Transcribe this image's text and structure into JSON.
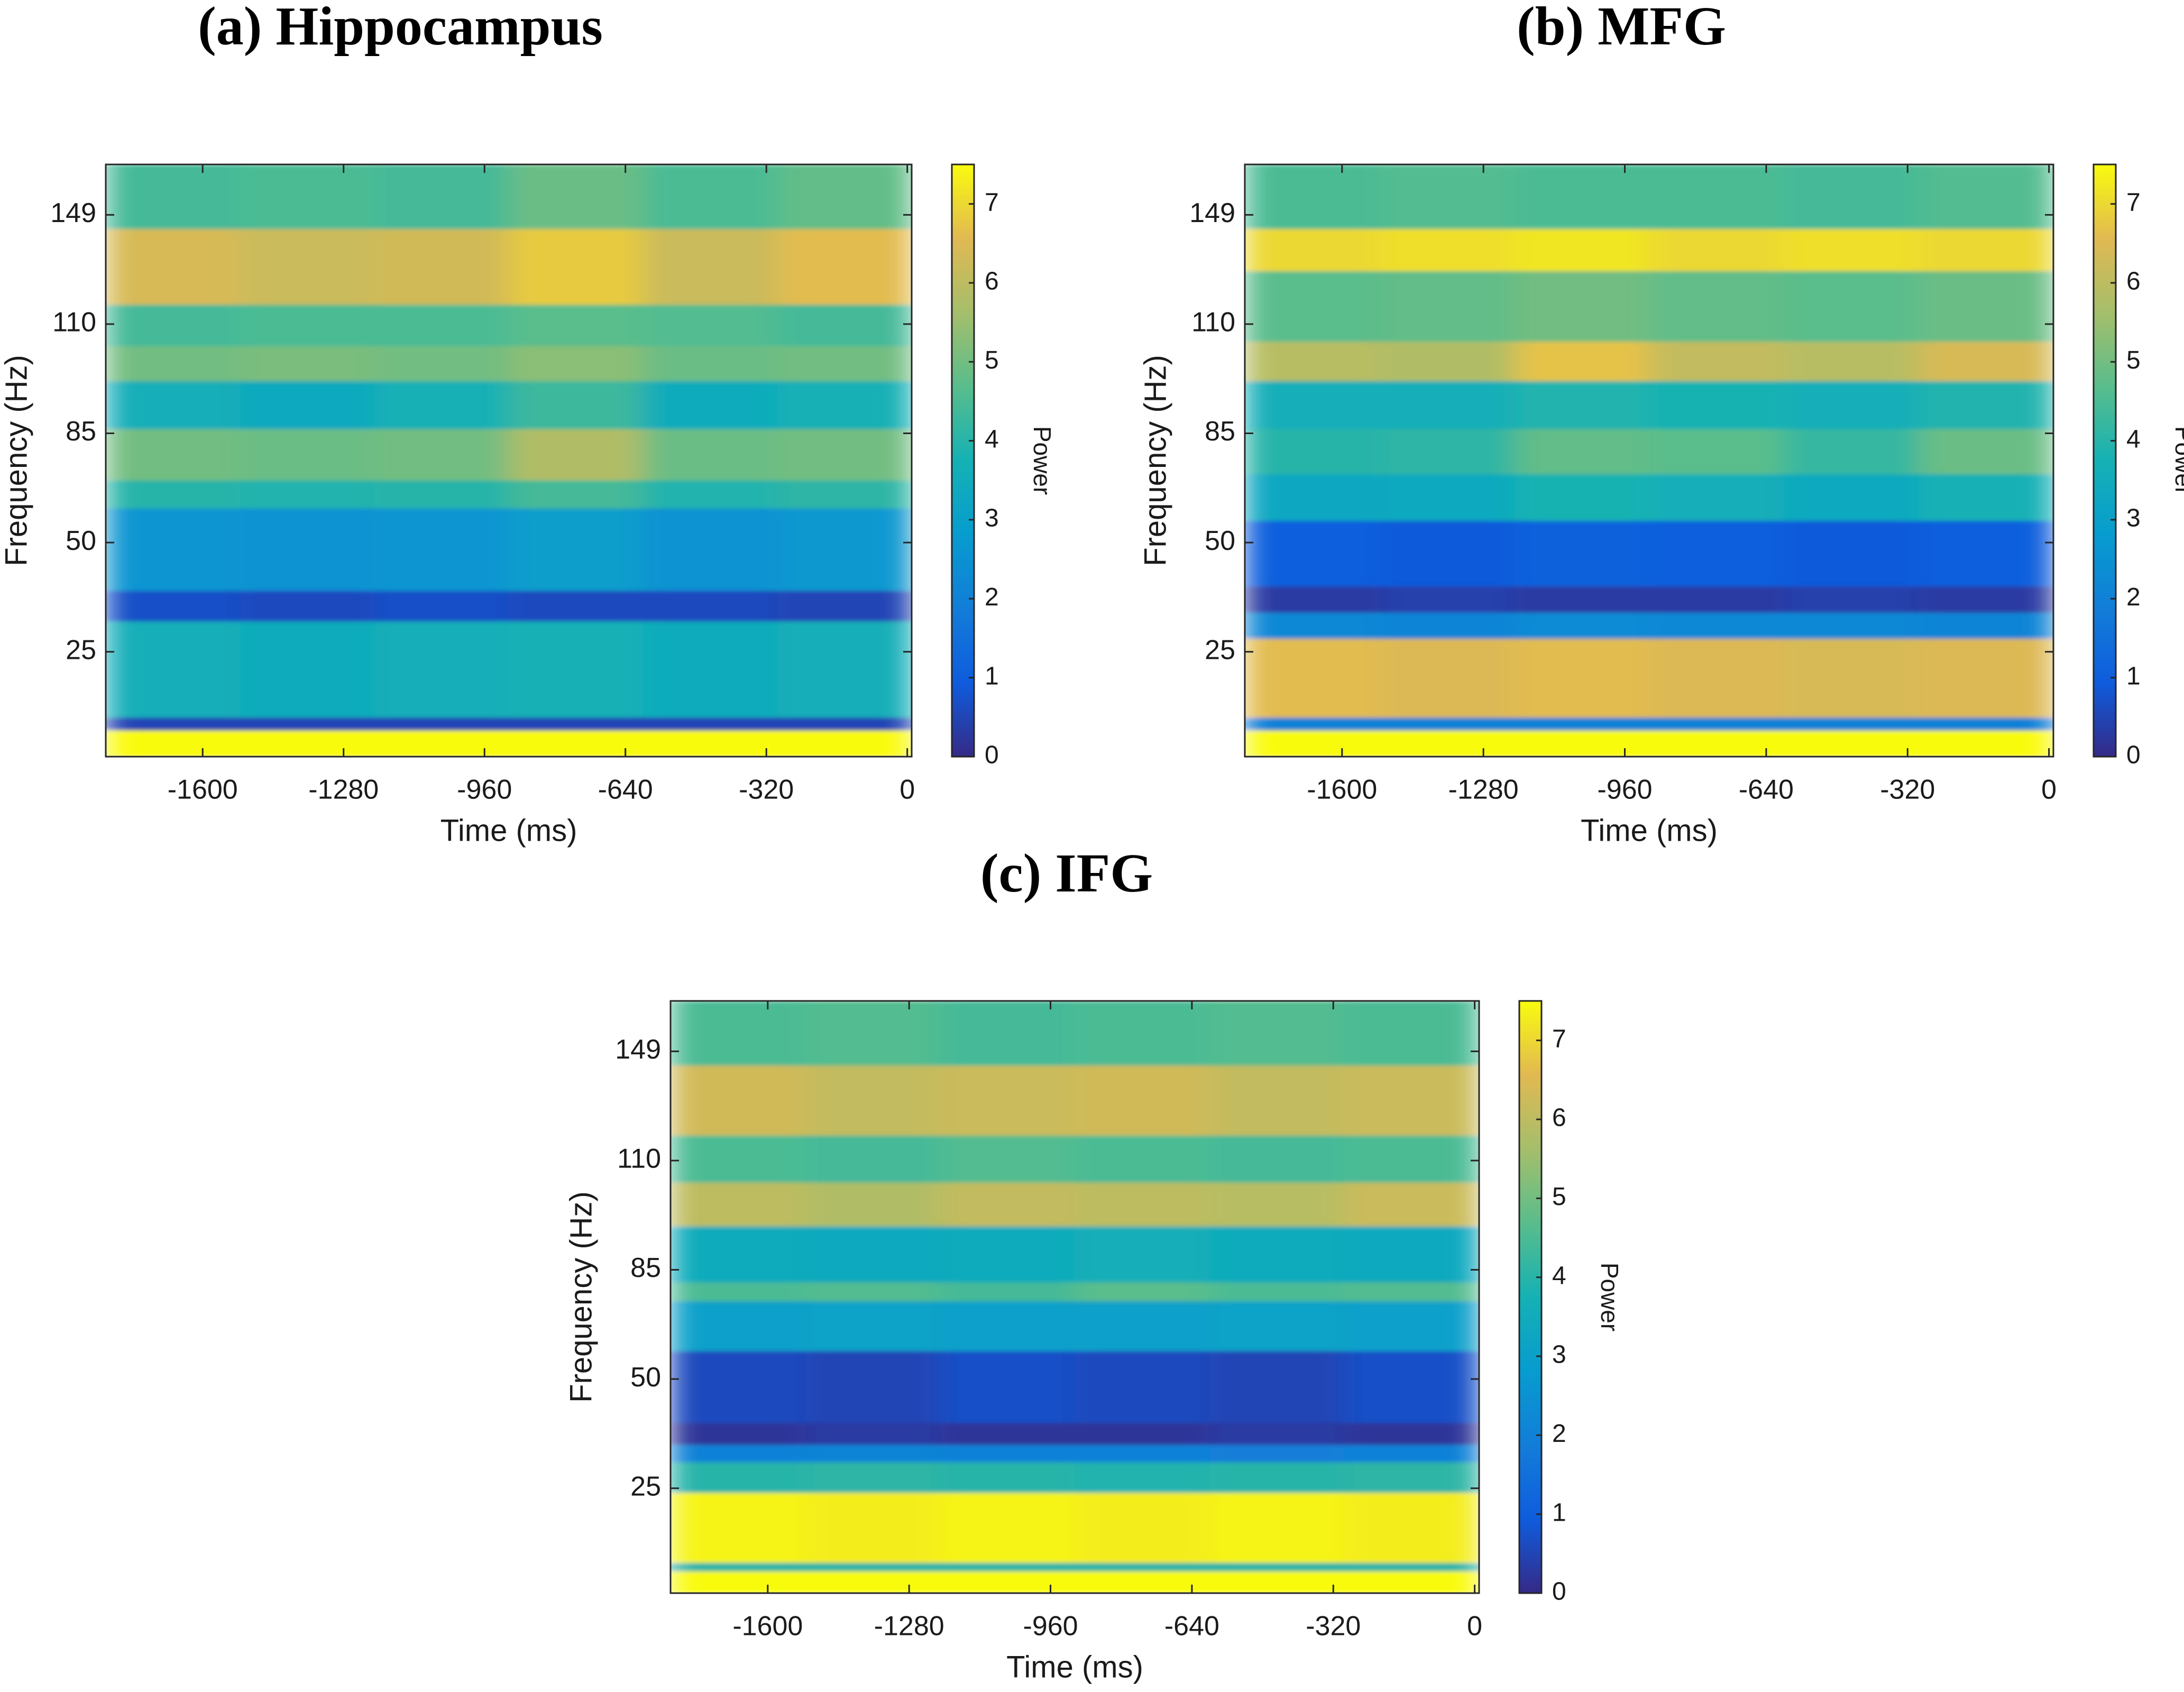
{
  "chart_data": [
    {
      "type": "heatmap",
      "title": "(a) Hippocampus",
      "xlabel": "Time (ms)",
      "ylabel": "Frequency (Hz)",
      "xlim": [
        -1820,
        10
      ],
      "xticks": [
        -1600,
        -1280,
        -960,
        -640,
        -320,
        0
      ],
      "ylim": [
        1,
        167
      ],
      "yticks": [
        25,
        50,
        85,
        110,
        149
      ],
      "xbins": [
        -1820,
        -1515,
        -1210,
        -905,
        -600,
        -295,
        10
      ],
      "ybins": [
        1,
        7,
        10,
        32,
        39,
        61,
        70,
        86,
        97,
        105,
        117,
        144,
        167
      ],
      "values": [
        [
          7.5,
          7.5,
          7.5,
          7.5,
          7.5,
          7.5
        ],
        [
          0.5,
          0.5,
          0.5,
          0.5,
          0.5,
          0.5
        ],
        [
          3.6,
          3.5,
          3.6,
          3.7,
          3.5,
          3.6
        ],
        [
          0.7,
          0.6,
          0.7,
          0.6,
          0.6,
          0.5
        ],
        [
          2.6,
          2.5,
          2.6,
          2.9,
          2.5,
          2.7
        ],
        [
          4.0,
          3.9,
          4.0,
          4.4,
          3.9,
          4.1
        ],
        [
          5.0,
          4.9,
          5.0,
          5.8,
          4.9,
          5.0
        ],
        [
          3.6,
          3.4,
          3.7,
          4.3,
          3.5,
          3.7
        ],
        [
          5.0,
          5.1,
          5.0,
          5.3,
          4.9,
          5.0
        ],
        [
          4.4,
          4.5,
          4.5,
          4.7,
          4.6,
          4.4
        ],
        [
          6.4,
          6.2,
          6.3,
          6.8,
          6.2,
          6.6
        ],
        [
          4.4,
          4.5,
          4.4,
          4.9,
          4.5,
          4.8
        ]
      ],
      "colormap": "parula",
      "clim": [
        0,
        7.5
      ],
      "cticks": [
        0,
        1,
        2,
        3,
        4,
        5,
        6,
        7
      ],
      "colorbar_label": "Power"
    },
    {
      "type": "heatmap",
      "title": "(b) MFG",
      "xlabel": "Time (ms)",
      "ylabel": "Frequency (Hz)",
      "xlim": [
        -1820,
        10
      ],
      "xticks": [
        -1600,
        -1280,
        -960,
        -640,
        -320,
        0
      ],
      "ylim": [
        1,
        167
      ],
      "yticks": [
        25,
        50,
        85,
        110,
        149
      ],
      "xbins": [
        -1820,
        -1515,
        -1210,
        -905,
        -600,
        -295,
        10
      ],
      "ybins": [
        1,
        7,
        10,
        28,
        34,
        40,
        57,
        72,
        86,
        97,
        106,
        129,
        144,
        167
      ],
      "values": [
        [
          7.5,
          7.5,
          7.5,
          7.5,
          7.5,
          7.5
        ],
        [
          2.0,
          2.0,
          2.0,
          2.0,
          2.0,
          2.0
        ],
        [
          6.6,
          6.5,
          6.6,
          6.5,
          6.4,
          6.5
        ],
        [
          2.2,
          2.1,
          2.3,
          2.2,
          2.2,
          2.1
        ],
        [
          0.3,
          0.4,
          0.3,
          0.3,
          0.4,
          0.3
        ],
        [
          1.0,
          0.9,
          1.1,
          1.0,
          0.9,
          1.0
        ],
        [
          3.3,
          3.4,
          3.8,
          3.6,
          3.4,
          3.7
        ],
        [
          4.0,
          4.1,
          4.8,
          4.7,
          4.2,
          4.9
        ],
        [
          3.6,
          3.6,
          3.9,
          3.8,
          3.6,
          3.9
        ],
        [
          5.9,
          5.8,
          6.7,
          6.1,
          5.9,
          6.4
        ],
        [
          4.7,
          4.8,
          5.0,
          4.8,
          4.7,
          4.9
        ],
        [
          7.0,
          7.1,
          7.2,
          7.0,
          7.1,
          7.0
        ],
        [
          4.5,
          4.6,
          4.5,
          4.5,
          4.4,
          4.6
        ]
      ],
      "colormap": "parula",
      "clim": [
        0,
        7.5
      ],
      "cticks": [
        0,
        1,
        2,
        3,
        4,
        5,
        6,
        7
      ],
      "colorbar_label": "Power"
    },
    {
      "type": "heatmap",
      "title": "(c) IFG",
      "xlabel": "Time (ms)",
      "ylabel": "Frequency (Hz)",
      "xlim": [
        -1820,
        10
      ],
      "xticks": [
        -1600,
        -1280,
        -960,
        -640,
        -320,
        0
      ],
      "ylim": [
        1,
        167
      ],
      "yticks": [
        25,
        50,
        85,
        110,
        149
      ],
      "xbins": [
        -1820,
        -1515,
        -1210,
        -905,
        -600,
        -295,
        10
      ],
      "ybins": [
        1,
        6,
        8,
        24,
        31,
        35,
        40,
        59,
        75,
        81,
        95,
        105,
        119,
        144,
        167
      ],
      "values": [
        [
          7.5,
          7.5,
          7.5,
          7.5,
          7.5,
          7.5
        ],
        [
          4.0,
          4.0,
          4.0,
          4.0,
          4.0,
          4.0
        ],
        [
          7.4,
          7.3,
          7.4,
          7.3,
          7.4,
          7.3
        ],
        [
          4.0,
          4.1,
          4.0,
          3.9,
          4.0,
          4.1
        ],
        [
          2.0,
          2.1,
          2.0,
          2.0,
          1.9,
          2.0
        ],
        [
          0.2,
          0.3,
          0.2,
          0.2,
          0.3,
          0.2
        ],
        [
          0.6,
          0.5,
          0.7,
          0.6,
          0.5,
          0.7
        ],
        [
          3.0,
          3.1,
          3.0,
          3.0,
          3.1,
          3.0
        ],
        [
          4.5,
          4.6,
          4.4,
          4.7,
          4.5,
          4.6
        ],
        [
          3.5,
          3.4,
          3.5,
          3.6,
          3.5,
          3.4
        ],
        [
          6.0,
          5.8,
          6.1,
          6.0,
          5.9,
          6.2
        ],
        [
          4.5,
          4.4,
          4.6,
          4.5,
          4.4,
          4.5
        ],
        [
          6.3,
          6.1,
          6.2,
          6.3,
          6.1,
          6.2
        ],
        [
          4.5,
          4.6,
          4.4,
          4.5,
          4.6,
          4.5
        ]
      ],
      "colormap": "parula",
      "clim": [
        0,
        7.5
      ],
      "cticks": [
        0,
        1,
        2,
        3,
        4,
        5,
        6,
        7
      ],
      "colorbar_label": "Power"
    }
  ]
}
